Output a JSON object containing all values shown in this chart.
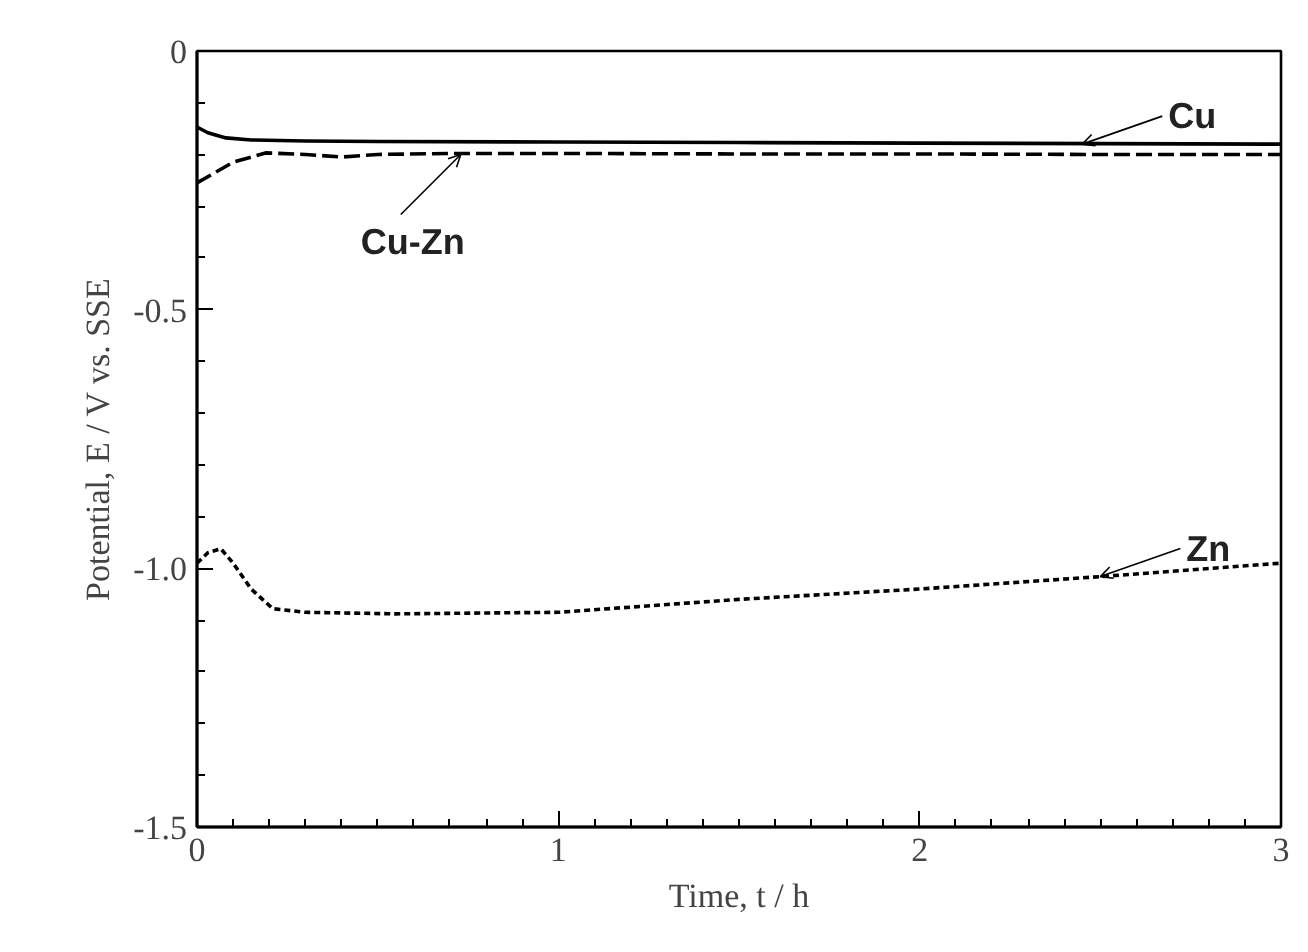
{
  "chart_data": {
    "type": "line",
    "xlabel": "Time, t / h",
    "ylabel": "Potential, E / V vs. SSE",
    "xlim": [
      0,
      3
    ],
    "ylim": [
      -1.5,
      0
    ],
    "xticks": [
      0,
      1,
      2,
      3
    ],
    "yticks": [
      {
        "value": -1.5,
        "label": "-1.5"
      },
      {
        "value": -1.0,
        "label": "-1.0"
      },
      {
        "value": -0.5,
        "label": "-0.5"
      },
      {
        "value": 0,
        "label": "0"
      }
    ],
    "grid": false,
    "series": [
      {
        "color": "#000000",
        "line_style": "solid",
        "x": [
          0,
          0.03,
          0.08,
          0.15,
          0.3,
          0.5,
          1,
          1.5,
          2,
          2.5,
          3
        ],
        "values": [
          -0.147,
          -0.158,
          -0.168,
          -0.172,
          -0.174,
          -0.175,
          -0.176,
          -0.177,
          -0.178,
          -0.179,
          -0.18
        ]
      },
      {
        "color": "#000000",
        "line_style": "dashed",
        "x": [
          0,
          0.05,
          0.1,
          0.19,
          0.3,
          0.4,
          0.5,
          0.7,
          1,
          1.5,
          2,
          2.5,
          3
        ],
        "values": [
          -0.255,
          -0.235,
          -0.215,
          -0.197,
          -0.2,
          -0.205,
          -0.2,
          -0.198,
          -0.198,
          -0.199,
          -0.199,
          -0.2,
          -0.2
        ]
      },
      {
        "color": "#000000",
        "line_style": "dotted",
        "x": [
          0,
          0.03,
          0.066,
          0.1,
          0.15,
          0.21,
          0.3,
          0.55,
          1,
          1.5,
          2,
          2.5,
          3
        ],
        "values": [
          -0.99,
          -0.97,
          -0.962,
          -0.99,
          -1.04,
          -1.078,
          -1.085,
          -1.088,
          -1.085,
          -1.06,
          -1.04,
          -1.016,
          -0.99
        ]
      }
    ],
    "annotations": [
      {
        "text": "Cu",
        "x": 2.45,
        "y": -0.18
      },
      {
        "text": "Cu-Zn",
        "x": 0.73,
        "y": -0.2
      },
      {
        "text": "Zn",
        "x": 2.5,
        "y": -1.016
      }
    ]
  }
}
